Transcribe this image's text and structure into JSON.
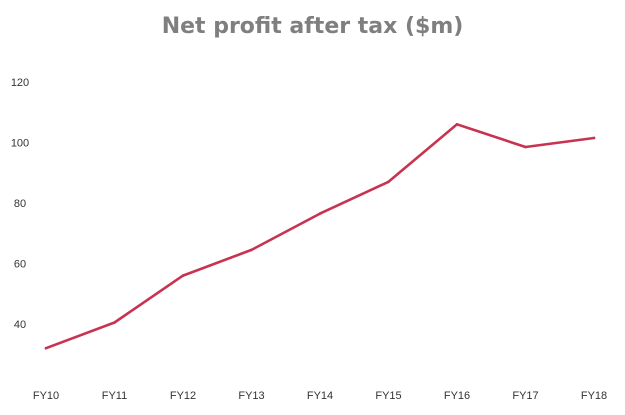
{
  "chart_data": {
    "type": "line",
    "title": "Net profit after tax ($m)",
    "xlabel": "",
    "ylabel": "",
    "categories": [
      "FY10",
      "FY11",
      "FY12",
      "FY13",
      "FY14",
      "FY15",
      "FY16",
      "FY17",
      "FY18"
    ],
    "series": [
      {
        "color": "#c8334f",
        "values": [
          32,
          40.5,
          56,
          64.5,
          76.5,
          87,
          106,
          98.5,
          101.5
        ]
      }
    ],
    "y_ticks": [
      40,
      60,
      80,
      100,
      120
    ],
    "ylim": [
      24,
      120
    ],
    "grid": false,
    "legend": "none"
  }
}
